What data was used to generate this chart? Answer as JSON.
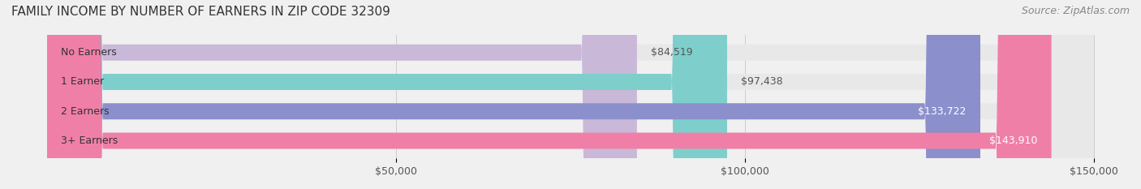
{
  "title": "FAMILY INCOME BY NUMBER OF EARNERS IN ZIP CODE 32309",
  "source": "Source: ZipAtlas.com",
  "categories": [
    "No Earners",
    "1 Earner",
    "2 Earners",
    "3+ Earners"
  ],
  "values": [
    84519,
    97438,
    133722,
    143910
  ],
  "bar_colors": [
    "#c9b8d8",
    "#7ecfcc",
    "#8b8fcc",
    "#f07fa8"
  ],
  "bar_edge_colors": [
    "#c9b8d8",
    "#7ecfcc",
    "#8b8fcc",
    "#f07fa8"
  ],
  "label_colors": [
    "#555555",
    "#555555",
    "#ffffff",
    "#ffffff"
  ],
  "value_labels": [
    "$84,519",
    "$97,438",
    "$133,722",
    "$143,910"
  ],
  "xlim": [
    0,
    150000
  ],
  "xticks": [
    50000,
    100000,
    150000
  ],
  "xtick_labels": [
    "$50,000",
    "$100,000",
    "$150,000"
  ],
  "background_color": "#f0f0f0",
  "bar_background_color": "#e8e8e8",
  "title_fontsize": 11,
  "source_fontsize": 9,
  "tick_fontsize": 9,
  "label_fontsize": 9,
  "value_fontsize": 9
}
